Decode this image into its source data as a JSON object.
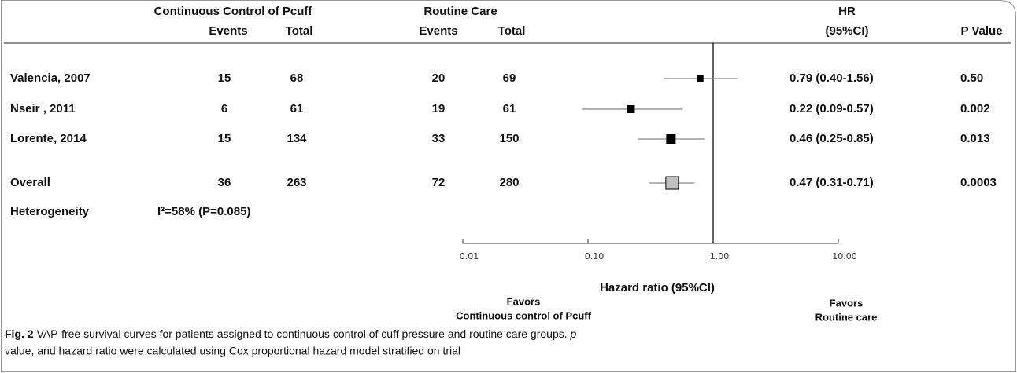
{
  "chart_data": {
    "type": "forest",
    "header_group1": "Continuous Control of Pcuff",
    "header_group2": "Routine Care",
    "header_events": "Events",
    "header_total": "Total",
    "header_hr": "HR",
    "header_ci": "(95%CI)",
    "header_p": "P Value",
    "categories": [
      "Valencia, 2007",
      "Nseir , 2011",
      "Lorente, 2014",
      "Overall"
    ],
    "events1": [
      15,
      6,
      15,
      36
    ],
    "total1": [
      68,
      61,
      134,
      263
    ],
    "events2": [
      20,
      19,
      33,
      72
    ],
    "total2": [
      69,
      61,
      150,
      280
    ],
    "values": [
      0.79,
      0.22,
      0.46,
      0.47
    ],
    "lower": [
      0.4,
      0.09,
      0.25,
      0.31
    ],
    "upper": [
      1.56,
      0.57,
      0.85,
      0.71
    ],
    "value_labels": [
      "0.79 (0.40-1.56)",
      "0.22 (0.09-0.57)",
      "0.46 (0.25-0.85)",
      "0.47 (0.31-0.71)"
    ],
    "p_values": [
      "0.50",
      "0.002",
      "0.013",
      "0.0003"
    ],
    "heterogeneity_label": "Heterogeneity",
    "heterogeneity_text": "I²=58% (P=0.085)",
    "xlabel": "Hazard ratio (95%CI)",
    "favors_left": [
      "Favors",
      "Continuous control of Pcuff"
    ],
    "favors_right": [
      "Favors",
      "Routine care"
    ],
    "log_x": true,
    "xlim": [
      0.01,
      10
    ],
    "xticks": [
      {
        "value": 0.01,
        "label": "0.01"
      },
      {
        "value": 0.1,
        "label": "0.10"
      },
      {
        "value": 1,
        "label": "1.00"
      },
      {
        "value": 10,
        "label": "10.00"
      }
    ],
    "reference": 1,
    "color": "#000000",
    "overall_color": "#c0c0c0",
    "caption_label": "Fig. 2",
    "caption_text": "VAP-free survival curves for patients assigned to continuous control of cuff pressure and routine care groups.",
    "caption_p": "p",
    "caption_rest": "value, and hazard ratio were calculated using Cox proportional hazard model stratified on trial"
  }
}
